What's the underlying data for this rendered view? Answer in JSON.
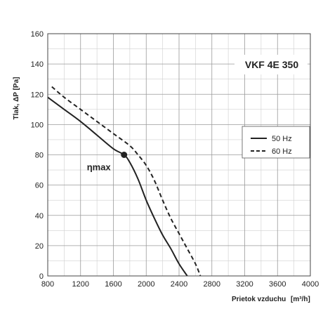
{
  "chart_data": {
    "type": "line",
    "title": "VKF 4E 350",
    "xlabel": "Prietok vzduchu",
    "xlabel_unit": "[m³/h]",
    "ylabel": "Tlak, ΔP [Pa]",
    "xlim": [
      800,
      4000
    ],
    "ylim": [
      0,
      160
    ],
    "x_ticks": [
      800,
      1200,
      1600,
      2000,
      2400,
      2800,
      3200,
      3600,
      4000
    ],
    "y_ticks": [
      0,
      20,
      40,
      60,
      80,
      100,
      120,
      140,
      160
    ],
    "x_minor_step": 200,
    "y_minor_step": 10,
    "grid": true,
    "legend_position": "right",
    "series": [
      {
        "name": "50 Hz",
        "style": "solid",
        "color": "#222222",
        "x": [
          800,
          1000,
          1200,
          1400,
          1600,
          1730,
          1800,
          1900,
          2000,
          2100,
          2200,
          2300,
          2400,
          2500
        ],
        "y": [
          118,
          110,
          102,
          93,
          84,
          80,
          75,
          64,
          50,
          38,
          27,
          18,
          8,
          0
        ]
      },
      {
        "name": "60 Hz",
        "style": "dashed",
        "color": "#222222",
        "x": [
          850,
          1000,
          1200,
          1400,
          1600,
          1800,
          1900,
          2000,
          2100,
          2200,
          2300,
          2400,
          2500,
          2600,
          2660
        ],
        "y": [
          125,
          118,
          110,
          102,
          94,
          86,
          80,
          73,
          63,
          50,
          38,
          28,
          18,
          8,
          0
        ]
      }
    ],
    "annotations": [
      {
        "text": "ηmax",
        "x": 1730,
        "y": 80
      }
    ]
  }
}
